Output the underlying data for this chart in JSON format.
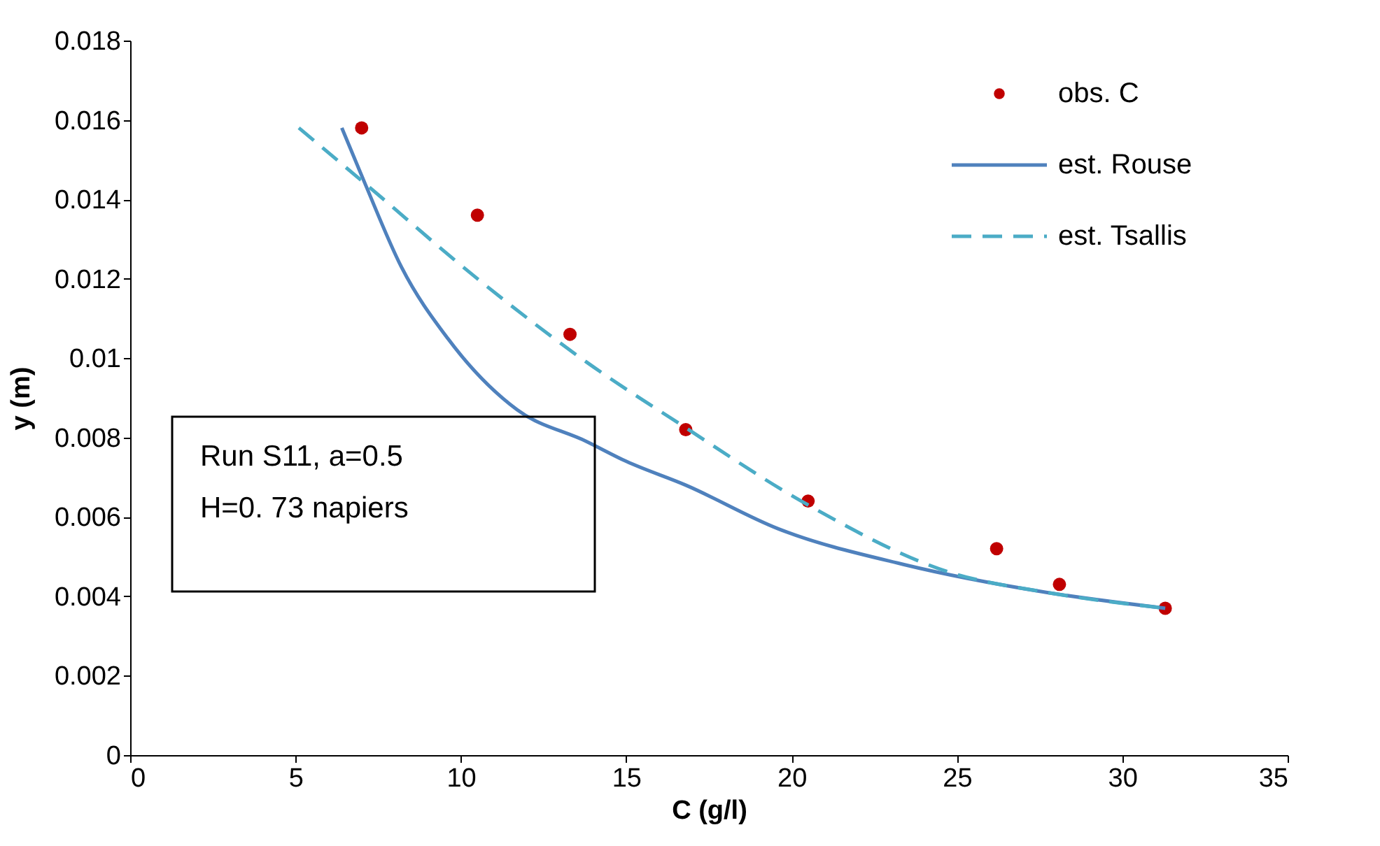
{
  "chart_data": {
    "type": "line",
    "xlabel": "C (g/l)",
    "ylabel": "y (m)",
    "xlim": [
      0,
      35
    ],
    "xticks": [
      0,
      5,
      10,
      15,
      20,
      25,
      30,
      35
    ],
    "ylim": [
      0,
      0.018
    ],
    "yticks": [
      0,
      0.002,
      0.004,
      0.006,
      0.008,
      0.01,
      0.012,
      0.014,
      0.016,
      0.018
    ],
    "grid": false,
    "legend": "top right",
    "annotations": [
      "Run S11, a=0.5",
      "H=0. 73 napiers"
    ],
    "series": [
      {
        "name": "obs. C",
        "type": "scatter",
        "marker": "circle",
        "color": "#c00000",
        "x": [
          7.0,
          10.5,
          13.3,
          16.8,
          20.5,
          26.2,
          28.1,
          31.3
        ],
        "values": [
          0.0158,
          0.0136,
          0.0106,
          0.0082,
          0.0064,
          0.0052,
          0.0043,
          0.0037
        ]
      },
      {
        "name": "est. Rouse",
        "marker": "none",
        "line_style": "solid",
        "color": "#4f81bd",
        "x": [
          6.4,
          7.1,
          8.2,
          9.6,
          11.7,
          13.8,
          15.0,
          16.8,
          19.6,
          23.4,
          27.7,
          31.3
        ],
        "values": [
          0.0158,
          0.0144,
          0.0123,
          0.0105,
          0.0087,
          0.0079,
          0.0074,
          0.0068,
          0.0057,
          0.0048,
          0.0041,
          0.0037
        ]
      },
      {
        "name": "est. Tsallis",
        "marker": "none",
        "line_style": "dashed",
        "color": "#4bacc6",
        "x": [
          5.1,
          7.1,
          10.5,
          13.8,
          16.7,
          20.5,
          24.8,
          27.7,
          31.3
        ],
        "values": [
          0.0158,
          0.0144,
          0.012,
          0.0099,
          0.0083,
          0.0063,
          0.0046,
          0.0041,
          0.0037
        ]
      }
    ]
  }
}
